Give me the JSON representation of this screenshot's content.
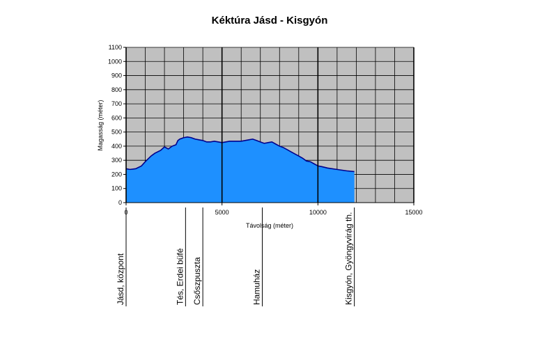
{
  "chart_data": {
    "type": "area",
    "title": "Kéktúra Jásd - Kisgyón",
    "xlabel": "Távolság (méter)",
    "ylabel": "Magasság (méter)",
    "xlim": [
      0,
      15000
    ],
    "ylim": [
      0,
      1100
    ],
    "x_ticks": [
      0,
      5000,
      10000,
      15000
    ],
    "y_ticks": [
      0,
      100,
      200,
      300,
      400,
      500,
      600,
      700,
      800,
      900,
      1000,
      1100
    ],
    "grid": true,
    "legend": "none",
    "colors": {
      "fill": "#1E90FF",
      "line": "#00008B",
      "plot_bg": "#C0C0C0",
      "grid": "#000000"
    },
    "series": [
      {
        "x": [
          0,
          200,
          500,
          800,
          1000,
          1300,
          1500,
          1800,
          2000,
          2200,
          2400,
          2600,
          2700,
          2800,
          3000,
          3200,
          3400,
          3600,
          3800,
          4000,
          4200,
          4400,
          4600,
          4800,
          5000,
          5200,
          5400,
          5600,
          5800,
          6000,
          6200,
          6400,
          6600,
          6800,
          7000,
          7200,
          7400,
          7600,
          7800,
          8000,
          8200,
          8400,
          8600,
          8800,
          9000,
          9200,
          9400,
          9600,
          9800,
          10000,
          10200,
          10500,
          11000,
          11500,
          11900
        ],
        "values": [
          240,
          235,
          240,
          260,
          290,
          330,
          350,
          370,
          395,
          380,
          400,
          410,
          440,
          450,
          460,
          465,
          460,
          450,
          445,
          440,
          430,
          430,
          435,
          430,
          425,
          430,
          435,
          435,
          435,
          435,
          440,
          445,
          450,
          440,
          430,
          420,
          425,
          430,
          415,
          400,
          390,
          375,
          360,
          345,
          330,
          315,
          295,
          290,
          275,
          260,
          255,
          245,
          235,
          225,
          220
        ]
      }
    ],
    "waypoints": [
      {
        "label": "Jásd, központ",
        "x": 0
      },
      {
        "label": "Tés, Erdei büfé",
        "x": 3100
      },
      {
        "label": "Csőszpuszta",
        "x": 4000
      },
      {
        "label": "Hamuház",
        "x": 7100
      },
      {
        "label": "Kisgyón, Gyöngyvirág th.",
        "x": 11900
      }
    ]
  }
}
